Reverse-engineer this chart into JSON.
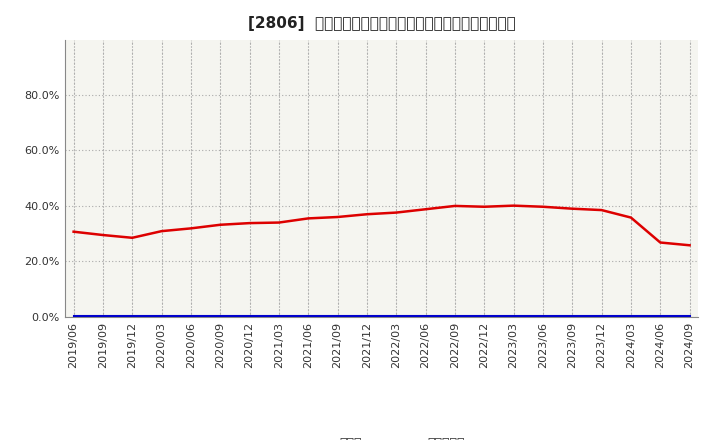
{
  "title": "[2806]  現頲金、有利子負債の総資産に対する比率の推移",
  "cash_label": "現頲金",
  "debt_label": "有利子負債",
  "cash_color": "#dd0000",
  "debt_color": "#0000cc",
  "background_color": "#ffffff",
  "plot_bg_color": "#f5f5f0",
  "grid_color": "#aaaaaa",
  "ylim": [
    0.0,
    1.0
  ],
  "yticks": [
    0.0,
    0.2,
    0.4,
    0.6,
    0.8
  ],
  "x_labels": [
    "2019/06",
    "2019/09",
    "2019/12",
    "2020/03",
    "2020/06",
    "2020/09",
    "2020/12",
    "2021/03",
    "2021/06",
    "2021/09",
    "2021/12",
    "2022/03",
    "2022/06",
    "2022/09",
    "2022/12",
    "2023/03",
    "2023/06",
    "2023/09",
    "2023/12",
    "2024/03",
    "2024/06",
    "2024/09"
  ],
  "cash_values": [
    0.307,
    0.295,
    0.285,
    0.309,
    0.319,
    0.332,
    0.338,
    0.34,
    0.355,
    0.36,
    0.37,
    0.376,
    0.388,
    0.4,
    0.397,
    0.401,
    0.397,
    0.39,
    0.385,
    0.358,
    0.268,
    0.258
  ],
  "debt_values": [
    0.002,
    0.002,
    0.002,
    0.002,
    0.002,
    0.002,
    0.002,
    0.002,
    0.002,
    0.002,
    0.002,
    0.002,
    0.002,
    0.002,
    0.002,
    0.002,
    0.002,
    0.002,
    0.002,
    0.002,
    0.002,
    0.002
  ],
  "title_fontsize": 11,
  "tick_fontsize": 8,
  "legend_fontsize": 9
}
